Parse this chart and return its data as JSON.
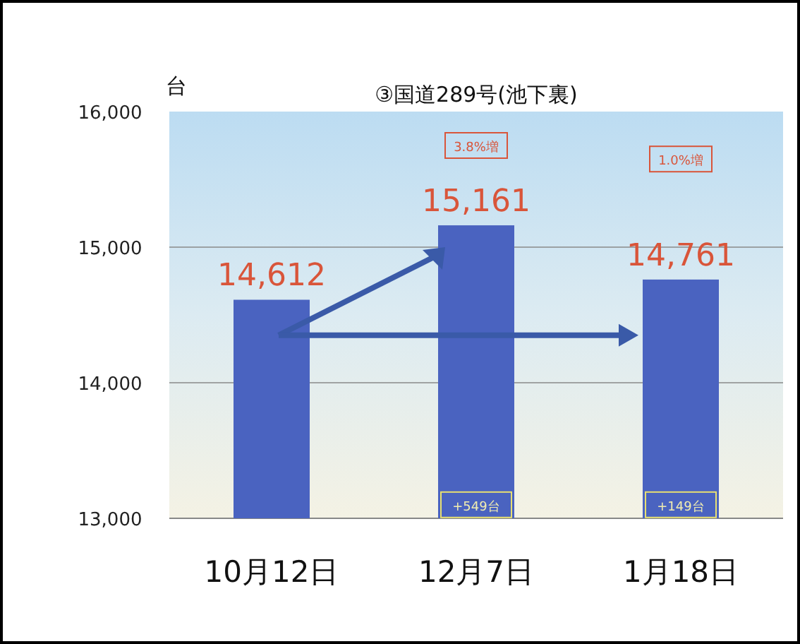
{
  "chart_data": {
    "type": "bar",
    "title": "③国道289号(池下裏)",
    "ylabel": "台",
    "categories": [
      "10月12日",
      "12月7日",
      "1月18日"
    ],
    "values": [
      14612,
      15161,
      14761
    ],
    "color": "#4a63c0",
    "ylim": [
      13000,
      16000
    ],
    "yticks": [
      {
        "value": 13000,
        "label": "13,000"
      },
      {
        "value": 14000,
        "label": "14,000"
      },
      {
        "value": 15000,
        "label": "15,000"
      },
      {
        "value": 16000,
        "label": "16,000"
      }
    ],
    "grid": "y",
    "value_labels": [
      "14,612",
      "15,161",
      "14,761"
    ],
    "annotations": [
      "3.8%増",
      "1.0%増",
      "+549台",
      "+149台"
    ]
  }
}
